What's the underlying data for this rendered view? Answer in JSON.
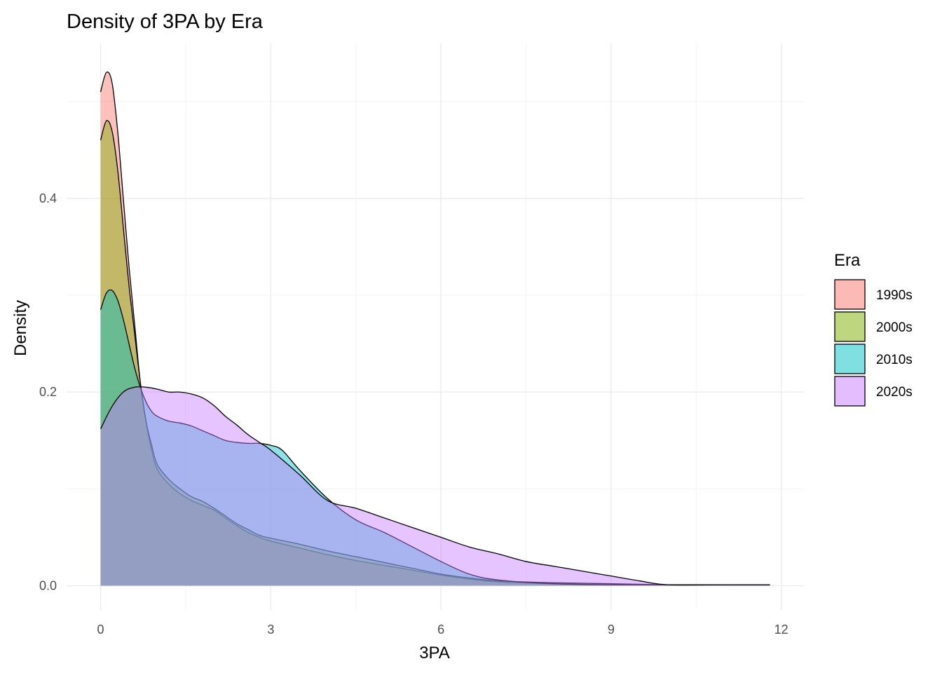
{
  "chart_data": {
    "type": "area",
    "title": "Density of 3PA by Era",
    "xlabel": "3PA",
    "ylabel": "Density",
    "xlim": [
      -0.6,
      12.4
    ],
    "ylim": [
      -0.025,
      0.56
    ],
    "x_ticks": [
      0,
      3,
      6,
      9,
      12
    ],
    "x_tick_labels": [
      "0",
      "3",
      "6",
      "9",
      "12"
    ],
    "y_ticks": [
      0.0,
      0.2,
      0.4
    ],
    "y_tick_labels": [
      "0.0",
      "0.2",
      "0.4"
    ],
    "grid": true,
    "legend": {
      "title": "Era",
      "position": "right"
    },
    "series": [
      {
        "name": "1990s",
        "color": "#F8766D",
        "x": [
          0,
          0.1,
          0.2,
          0.3,
          0.4,
          0.5,
          0.6,
          0.7,
          0.8,
          0.9,
          1.0,
          1.2,
          1.4,
          1.6,
          1.8,
          2.0,
          2.2,
          2.4,
          2.6,
          2.8,
          3.0,
          3.5,
          4.0,
          4.5,
          5.0,
          5.5,
          6.0,
          6.5,
          7.0,
          8.0,
          9.0,
          10.0,
          11.0,
          11.8
        ],
        "y": [
          0.51,
          0.53,
          0.52,
          0.47,
          0.4,
          0.33,
          0.27,
          0.21,
          0.17,
          0.14,
          0.12,
          0.105,
          0.095,
          0.088,
          0.083,
          0.078,
          0.07,
          0.062,
          0.055,
          0.05,
          0.046,
          0.039,
          0.032,
          0.026,
          0.021,
          0.016,
          0.011,
          0.007,
          0.004,
          0.002,
          0.001,
          0.001,
          0.001,
          0.001
        ]
      },
      {
        "name": "2000s",
        "color": "#7CAE00",
        "x": [
          0,
          0.1,
          0.2,
          0.3,
          0.4,
          0.5,
          0.6,
          0.7,
          0.8,
          0.9,
          1.0,
          1.2,
          1.4,
          1.6,
          1.8,
          2.0,
          2.2,
          2.4,
          2.6,
          2.8,
          3.0,
          3.5,
          4.0,
          4.5,
          5.0,
          5.5,
          6.0,
          6.5,
          7.0,
          8.0,
          9.0,
          10.0,
          11.0,
          11.8
        ],
        "y": [
          0.46,
          0.48,
          0.47,
          0.43,
          0.37,
          0.31,
          0.26,
          0.21,
          0.17,
          0.145,
          0.125,
          0.11,
          0.1,
          0.092,
          0.087,
          0.08,
          0.072,
          0.064,
          0.058,
          0.052,
          0.049,
          0.043,
          0.036,
          0.03,
          0.024,
          0.018,
          0.012,
          0.008,
          0.005,
          0.003,
          0.002,
          0.001,
          0.001,
          0.001
        ]
      },
      {
        "name": "2010s",
        "color": "#00BFC4",
        "x": [
          0,
          0.1,
          0.2,
          0.3,
          0.4,
          0.5,
          0.6,
          0.7,
          0.8,
          0.9,
          1.0,
          1.2,
          1.4,
          1.6,
          1.8,
          2.0,
          2.2,
          2.4,
          2.6,
          2.8,
          3.0,
          3.2,
          3.5,
          4.0,
          4.5,
          5.0,
          5.5,
          6.0,
          6.5,
          7.0,
          8.0,
          9.0,
          10.0,
          11.0,
          11.8
        ],
        "y": [
          0.285,
          0.302,
          0.305,
          0.295,
          0.275,
          0.25,
          0.225,
          0.205,
          0.19,
          0.18,
          0.175,
          0.17,
          0.168,
          0.165,
          0.16,
          0.155,
          0.15,
          0.148,
          0.147,
          0.147,
          0.145,
          0.14,
          0.12,
          0.09,
          0.068,
          0.055,
          0.04,
          0.025,
          0.012,
          0.006,
          0.002,
          0.001,
          0.001,
          0.001,
          0.001
        ]
      },
      {
        "name": "2020s",
        "color": "#C77CFF",
        "x": [
          0,
          0.2,
          0.4,
          0.6,
          0.8,
          1.0,
          1.2,
          1.4,
          1.6,
          1.8,
          2.0,
          2.2,
          2.4,
          2.6,
          2.8,
          3.0,
          3.5,
          4.0,
          4.5,
          5.0,
          5.5,
          6.0,
          6.5,
          7.0,
          7.5,
          8.0,
          8.5,
          9.0,
          9.5,
          10.0,
          11.0,
          11.8
        ],
        "y": [
          0.162,
          0.185,
          0.2,
          0.205,
          0.205,
          0.203,
          0.2,
          0.2,
          0.198,
          0.194,
          0.186,
          0.175,
          0.166,
          0.156,
          0.148,
          0.14,
          0.115,
          0.088,
          0.08,
          0.07,
          0.06,
          0.05,
          0.04,
          0.033,
          0.025,
          0.02,
          0.015,
          0.01,
          0.005,
          0.001,
          0.001,
          0.001
        ]
      }
    ]
  }
}
